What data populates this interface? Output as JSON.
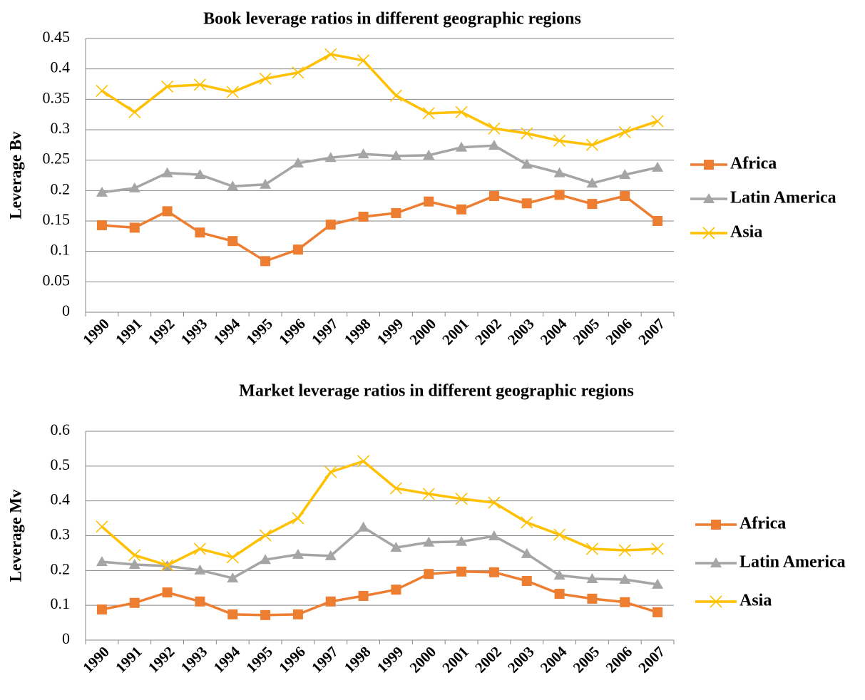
{
  "chart_data": [
    {
      "type": "line",
      "title": "Book leverage ratios in different geographic regions",
      "y_label": "Leverage Bv",
      "categories": [
        "1990",
        "1991",
        "1992",
        "1993",
        "1994",
        "1995",
        "1996",
        "1997",
        "1998",
        "1999",
        "2000",
        "2001",
        "2002",
        "2003",
        "2004",
        "2005",
        "2006",
        "2007"
      ],
      "series": [
        {
          "name": "Africa",
          "color": "#ed7d31",
          "marker": "square",
          "values": [
            0.143,
            0.139,
            0.166,
            0.131,
            0.117,
            0.084,
            0.103,
            0.144,
            0.157,
            0.163,
            0.182,
            0.169,
            0.191,
            0.179,
            0.193,
            0.178,
            0.191,
            0.15
          ]
        },
        {
          "name": "Latin America",
          "color": "#a5a5a5",
          "marker": "triangle",
          "values": [
            0.197,
            0.204,
            0.229,
            0.226,
            0.207,
            0.21,
            0.245,
            0.254,
            0.26,
            0.257,
            0.258,
            0.271,
            0.274,
            0.243,
            0.229,
            0.212,
            0.226,
            0.238
          ]
        },
        {
          "name": "Asia",
          "color": "#ffc000",
          "marker": "x",
          "values": [
            0.364,
            0.329,
            0.371,
            0.374,
            0.362,
            0.384,
            0.394,
            0.424,
            0.414,
            0.356,
            0.327,
            0.329,
            0.302,
            0.294,
            0.282,
            0.275,
            0.296,
            0.314
          ]
        }
      ],
      "ylim": [
        0,
        0.45
      ],
      "yticks": [
        0,
        0.05,
        0.1,
        0.15,
        0.2,
        0.25,
        0.3,
        0.35,
        0.4,
        0.45
      ],
      "grid": true,
      "legend": "right"
    },
    {
      "type": "line",
      "title": "Market leverage ratios in different geographic regions",
      "y_label": "Leverage Mv",
      "categories": [
        "1990",
        "1991",
        "1992",
        "1993",
        "1994",
        "1995",
        "1996",
        "1997",
        "1998",
        "1999",
        "2000",
        "2001",
        "2002",
        "2003",
        "2004",
        "2005",
        "2006",
        "2007"
      ],
      "series": [
        {
          "name": "Africa",
          "color": "#ed7d31",
          "marker": "square",
          "values": [
            0.088,
            0.107,
            0.137,
            0.111,
            0.074,
            0.072,
            0.074,
            0.111,
            0.127,
            0.145,
            0.19,
            0.197,
            0.195,
            0.17,
            0.133,
            0.119,
            0.109,
            0.08
          ]
        },
        {
          "name": "Latin America",
          "color": "#a5a5a5",
          "marker": "triangle",
          "values": [
            0.225,
            0.217,
            0.213,
            0.201,
            0.178,
            0.231,
            0.246,
            0.242,
            0.324,
            0.266,
            0.281,
            0.283,
            0.299,
            0.248,
            0.186,
            0.176,
            0.174,
            0.16
          ]
        },
        {
          "name": "Asia",
          "color": "#ffc000",
          "marker": "x",
          "values": [
            0.326,
            0.244,
            0.215,
            0.262,
            0.238,
            0.301,
            0.35,
            0.483,
            0.514,
            0.436,
            0.42,
            0.406,
            0.395,
            0.338,
            0.303,
            0.262,
            0.258,
            0.262
          ]
        }
      ],
      "ylim": [
        0,
        0.6
      ],
      "yticks": [
        0,
        0.1,
        0.2,
        0.3,
        0.4,
        0.5,
        0.6
      ],
      "grid": true,
      "legend": "right"
    }
  ]
}
